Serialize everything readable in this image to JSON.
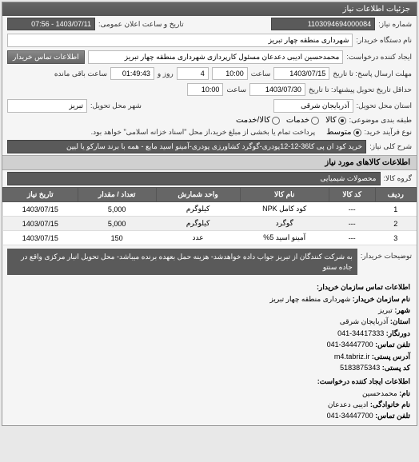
{
  "header": {
    "title": "جزئیات اطلاعات نیاز"
  },
  "info": {
    "reqnum_label": "شماره نیاز:",
    "reqnum": "1103094694000084",
    "public_announce_label": "تاریخ و ساعت اعلان عمومی:",
    "public_announce": "1403/07/11 - 07:56",
    "buyer_org_label": "نام دستگاه خریدار:",
    "buyer_org": "شهرداری منطقه چهار تبریز",
    "requester_label": "ایجاد کننده درخواست:",
    "requester": "محمدحسین ادیبی دعدعان مسئول کارپردازی شهرداری منطقه چهار تبریز",
    "contact_btn": "اطلاعات تماس خریدار",
    "deadline_reply_label": "مهلت ارسال پاسخ: تا تاریخ",
    "deadline_reply_date": "1403/07/15",
    "deadline_reply_time_label": "ساعت",
    "deadline_reply_time": "10:00",
    "days_label": "روز و",
    "days": "4",
    "remain_label": "ساعت باقی مانده",
    "remain": "01:49:43",
    "delivery_deadline_label": "حداقل تاریخ تحویل پیشنهاد: تا تاریخ",
    "delivery_date": "1403/07/30",
    "delivery_time_label": "ساعت",
    "delivery_time": "10:00",
    "province_label": "استان محل تحویل:",
    "province": "آذربایجان شرقی",
    "city_label": "شهر محل تحویل:",
    "city": "تبریز",
    "pkg_label": "طبقه بندی موضوعی:",
    "pkg_options": {
      "kalaa": "کالا",
      "khadamat": "خدمات",
      "khadamat_kala": "کالا/خدمت"
    },
    "pkg_selected": "kalaa",
    "purchase_type_label": "نوع فرآیند خرید:",
    "purchase_options": {
      "lowest": "متوسط",
      "mid": "متوسط"
    },
    "purchase_note": "پرداخت تمام یا بخشی از مبلغ خرید،از محل \"اسناد خزانه اسلامی\" خواهد بود."
  },
  "need": {
    "title_label": "شرح کلی نیاز:",
    "title": "خرید کود ان پی کا36-12-12پودری-گوگرد کشاورزی پودری-آمینو اسید مایع - همه با برند سارکو یا لیپن"
  },
  "goods_section": {
    "title": "اطلاعات کالاهای مورد نیاز",
    "group_label": "گروه کالا:",
    "group": "محصولات شیمیایی"
  },
  "table": {
    "columns": [
      "ردیف",
      "کد کالا",
      "نام کالا",
      "واحد شمارش",
      "تعداد / مقدار",
      "تاریخ نیاز"
    ],
    "rows": [
      [
        "1",
        "---",
        "کود کامل NPK",
        "کیلوگرم",
        "5,000",
        "1403/07/15"
      ],
      [
        "2",
        "---",
        "گوگرد",
        "کیلوگرم",
        "5,000",
        "1403/07/15"
      ],
      [
        "3",
        "---",
        "آمینو اسید 5%",
        "عدد",
        "150",
        "1403/07/15"
      ]
    ]
  },
  "desc": {
    "label": "توضیحات خریدار:",
    "text": "به شرکت کنندگان از تبریز جواب داده خواهدشد- هزینه حمل بعهده برنده میباشد- محل تحویل انبار مرکزی واقع در جاده سنتو"
  },
  "contact": {
    "heading": "اطلاعات تماس سازمان خریدار:",
    "org_label": "نام سازمان خریدار:",
    "org": "شهرداری منطقه چهار تبریز",
    "city_label": "شهر:",
    "city": "تبریز",
    "province_label": "استان:",
    "province": "آذربایجان شرقی",
    "prefix_label": "دورنگار:",
    "prefix": "34417333-041",
    "tel_label": "تلفن تماس:",
    "tel": "34447700-041",
    "addr_label": "آدرس پستی:",
    "addr": "m4.tabriz.ir",
    "postal_label": "کد پستی:",
    "postal": "5183875343",
    "creator_heading": "اطلاعات ایجاد کننده درخواست:",
    "name_label": "نام:",
    "name": "محمدحسین",
    "lname_label": "نام خانوادگی:",
    "lname": "ادیبی دعدعان",
    "ctel_label": "تلفن تماس:",
    "ctel": "34447700-041"
  },
  "colors": {
    "header_bg": "#5a5a5a",
    "field_dark": "#5a5a5a",
    "th_bg": "#666666"
  }
}
